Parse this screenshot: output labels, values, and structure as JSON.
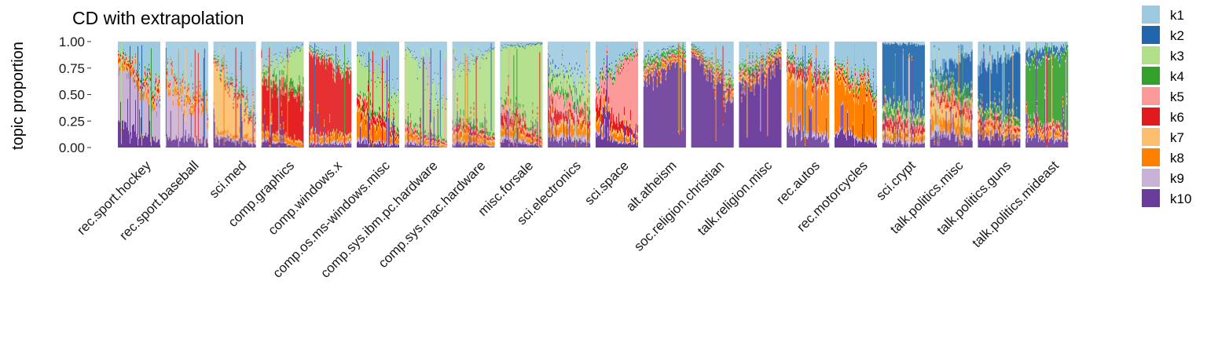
{
  "chart_data": {
    "type": "stacked-area-facets",
    "title": "CD with extrapolation",
    "xlabel": "",
    "ylabel": "topic proportion",
    "ylim": [
      0,
      1
    ],
    "yticks": [
      0,
      0.25,
      0.5,
      0.75,
      1
    ],
    "ytick_labels": [
      "0.00",
      "0.25",
      "0.50",
      "0.75",
      "1.00"
    ],
    "legend_position": "right",
    "topics": [
      {
        "name": "k1",
        "color": "#9ECAE1"
      },
      {
        "name": "k2",
        "color": "#2166AC"
      },
      {
        "name": "k3",
        "color": "#B2DF8A"
      },
      {
        "name": "k4",
        "color": "#33A02C"
      },
      {
        "name": "k5",
        "color": "#FB9A99"
      },
      {
        "name": "k6",
        "color": "#E31A1C"
      },
      {
        "name": "k7",
        "color": "#FDBF6F"
      },
      {
        "name": "k8",
        "color": "#FF7F00"
      },
      {
        "name": "k9",
        "color": "#CAB2D6"
      },
      {
        "name": "k10",
        "color": "#6A3D9A"
      }
    ],
    "facets": [
      {
        "label": "rec.sport.hockey",
        "start": [
          0.08,
          0,
          0.01,
          0.01,
          0.02,
          0.02,
          0.03,
          0.05,
          0.55,
          0.23
        ],
        "end": [
          0.45,
          0,
          0.01,
          0.02,
          0.02,
          0.03,
          0.04,
          0.05,
          0.33,
          0.05
        ]
      },
      {
        "label": "rec.sport.baseball",
        "start": [
          0.25,
          0,
          0.01,
          0.01,
          0.02,
          0.02,
          0.03,
          0.06,
          0.5,
          0.1
        ],
        "end": [
          0.55,
          0,
          0.01,
          0.02,
          0.02,
          0.02,
          0.04,
          0.06,
          0.23,
          0.05
        ]
      },
      {
        "label": "sci.med",
        "start": [
          0.12,
          0.01,
          0.02,
          0.02,
          0.02,
          0.02,
          0.62,
          0.03,
          0.04,
          0.1
        ],
        "end": [
          0.65,
          0.01,
          0.02,
          0.03,
          0.02,
          0.03,
          0.16,
          0.03,
          0.02,
          0.03
        ]
      },
      {
        "label": "comp.graphics",
        "start": [
          0.3,
          0.01,
          0.05,
          0.04,
          0.03,
          0.4,
          0.02,
          0.06,
          0.03,
          0.06
        ],
        "end": [
          0.03,
          0.01,
          0.4,
          0.08,
          0.03,
          0.4,
          0.02,
          0.03,
          0.0,
          0.0
        ]
      },
      {
        "label": "comp.windows.x",
        "start": [
          0.03,
          0.01,
          0.02,
          0.02,
          0.03,
          0.75,
          0.02,
          0.07,
          0.02,
          0.03
        ],
        "end": [
          0.25,
          0.01,
          0.03,
          0.02,
          0.03,
          0.55,
          0.02,
          0.04,
          0.02,
          0.03
        ]
      },
      {
        "label": "comp.os.ms-windows.misc",
        "start": [
          0.1,
          0.01,
          0.38,
          0.03,
          0.03,
          0.08,
          0.05,
          0.22,
          0.04,
          0.06
        ],
        "end": [
          0.55,
          0.01,
          0.28,
          0.03,
          0.02,
          0.03,
          0.02,
          0.03,
          0.01,
          0.02
        ]
      },
      {
        "label": "comp.sys.ibm.pc.hardware",
        "start": [
          0.05,
          0.01,
          0.7,
          0.03,
          0.03,
          0.03,
          0.02,
          0.06,
          0.03,
          0.04
        ],
        "end": [
          0.55,
          0.01,
          0.38,
          0.02,
          0.01,
          0.01,
          0.01,
          0.01,
          0.0,
          0.0
        ]
      },
      {
        "label": "comp.sys.mac.hardware",
        "start": [
          0.3,
          0.01,
          0.4,
          0.03,
          0.03,
          0.05,
          0.03,
          0.07,
          0.03,
          0.05
        ],
        "end": [
          0.05,
          0.01,
          0.8,
          0.03,
          0.02,
          0.02,
          0.02,
          0.03,
          0.01,
          0.01
        ]
      },
      {
        "label": "misc.forsale",
        "start": [
          0.05,
          0.01,
          0.45,
          0.03,
          0.1,
          0.1,
          0.05,
          0.08,
          0.06,
          0.07
        ],
        "end": [
          0.01,
          0.01,
          0.88,
          0.02,
          0.02,
          0.01,
          0.01,
          0.02,
          0.01,
          0.01
        ]
      },
      {
        "label": "sci.electronics",
        "start": [
          0.25,
          0.03,
          0.1,
          0.05,
          0.2,
          0.1,
          0.05,
          0.1,
          0.04,
          0.08
        ],
        "end": [
          0.35,
          0.01,
          0.25,
          0.05,
          0.05,
          0.05,
          0.04,
          0.1,
          0.04,
          0.06
        ]
      },
      {
        "label": "sci.space",
        "start": [
          0.4,
          0.02,
          0.03,
          0.03,
          0.12,
          0.15,
          0.05,
          0.08,
          0.03,
          0.09
        ],
        "end": [
          0.05,
          0.01,
          0.02,
          0.02,
          0.75,
          0.05,
          0.03,
          0.03,
          0.01,
          0.03
        ]
      },
      {
        "label": "alt.atheism",
        "start": [
          0.15,
          0.02,
          0.03,
          0.05,
          0.03,
          0.02,
          0.02,
          0.03,
          0.02,
          0.63
        ],
        "end": [
          0.05,
          0.01,
          0.02,
          0.03,
          0.02,
          0.02,
          0.02,
          0.04,
          0.01,
          0.78
        ]
      },
      {
        "label": "soc.religion.christian",
        "start": [
          0.02,
          0.01,
          0.01,
          0.01,
          0.01,
          0.01,
          0.01,
          0.01,
          0.01,
          0.9
        ],
        "end": [
          0.35,
          0.01,
          0.05,
          0.03,
          0.02,
          0.02,
          0.02,
          0.05,
          0.02,
          0.43
        ]
      },
      {
        "label": "talk.religion.misc",
        "start": [
          0.25,
          0.01,
          0.02,
          0.05,
          0.03,
          0.02,
          0.02,
          0.03,
          0.02,
          0.55
        ],
        "end": [
          0.03,
          0.01,
          0.02,
          0.02,
          0.02,
          0.02,
          0.02,
          0.03,
          0.01,
          0.82
        ]
      },
      {
        "label": "rec.autos",
        "start": [
          0.12,
          0.02,
          0.02,
          0.03,
          0.03,
          0.08,
          0.05,
          0.45,
          0.05,
          0.15
        ],
        "end": [
          0.3,
          0.01,
          0.02,
          0.04,
          0.03,
          0.05,
          0.04,
          0.41,
          0.04,
          0.06
        ]
      },
      {
        "label": "rec.motorcycles",
        "start": [
          0.2,
          0.01,
          0.02,
          0.02,
          0.02,
          0.02,
          0.05,
          0.5,
          0.03,
          0.13
        ],
        "end": [
          0.4,
          0.01,
          0.02,
          0.03,
          0.02,
          0.03,
          0.04,
          0.38,
          0.03,
          0.04
        ]
      },
      {
        "label": "sci.crypt",
        "start": [
          0.02,
          0.55,
          0.05,
          0.08,
          0.05,
          0.07,
          0.05,
          0.05,
          0.03,
          0.05
        ],
        "end": [
          0.03,
          0.65,
          0.06,
          0.04,
          0.05,
          0.05,
          0.03,
          0.04,
          0.02,
          0.03
        ]
      },
      {
        "label": "talk.politics.misc",
        "start": [
          0.3,
          0.06,
          0.03,
          0.06,
          0.05,
          0.05,
          0.15,
          0.12,
          0.05,
          0.13
        ],
        "end": [
          0.12,
          0.35,
          0.03,
          0.08,
          0.08,
          0.06,
          0.1,
          0.06,
          0.04,
          0.08
        ]
      },
      {
        "label": "talk.politics.guns",
        "start": [
          0.25,
          0.35,
          0.03,
          0.05,
          0.04,
          0.03,
          0.04,
          0.06,
          0.03,
          0.12
        ],
        "end": [
          0.1,
          0.6,
          0.02,
          0.05,
          0.03,
          0.03,
          0.03,
          0.04,
          0.02,
          0.08
        ]
      },
      {
        "label": "talk.politics.mideast",
        "start": [
          0.1,
          0.1,
          0.02,
          0.55,
          0.03,
          0.03,
          0.02,
          0.05,
          0.02,
          0.08
        ],
        "end": [
          0.05,
          0.05,
          0.02,
          0.68,
          0.03,
          0.03,
          0.02,
          0.04,
          0.02,
          0.06
        ]
      }
    ]
  }
}
